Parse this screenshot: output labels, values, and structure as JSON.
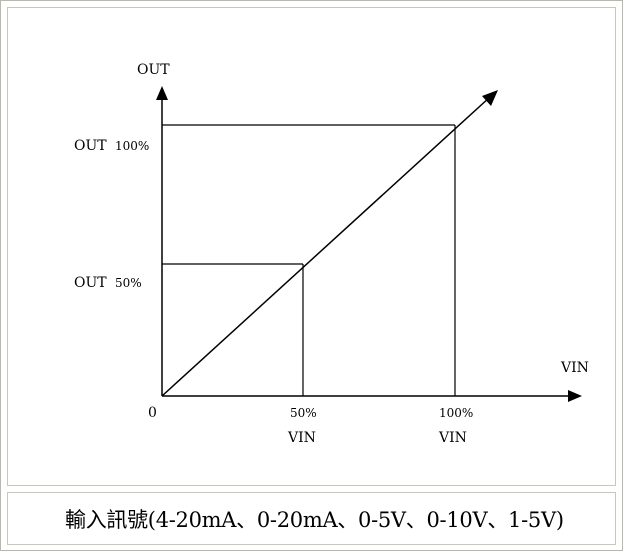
{
  "diagram": {
    "y_axis_label": "OUT",
    "x_axis_label": "VIN",
    "origin_label": "0",
    "y_ticks": [
      {
        "prefix": "OUT",
        "value": "100%"
      },
      {
        "prefix": "OUT",
        "value": "50%"
      }
    ],
    "x_ticks": [
      {
        "value": "50%",
        "unit": "VIN"
      },
      {
        "value": "100%",
        "unit": "VIN"
      }
    ]
  },
  "caption": "輸入訊號(4-20mA、0-20mA、0-5V、0-10V、1-5V)"
}
